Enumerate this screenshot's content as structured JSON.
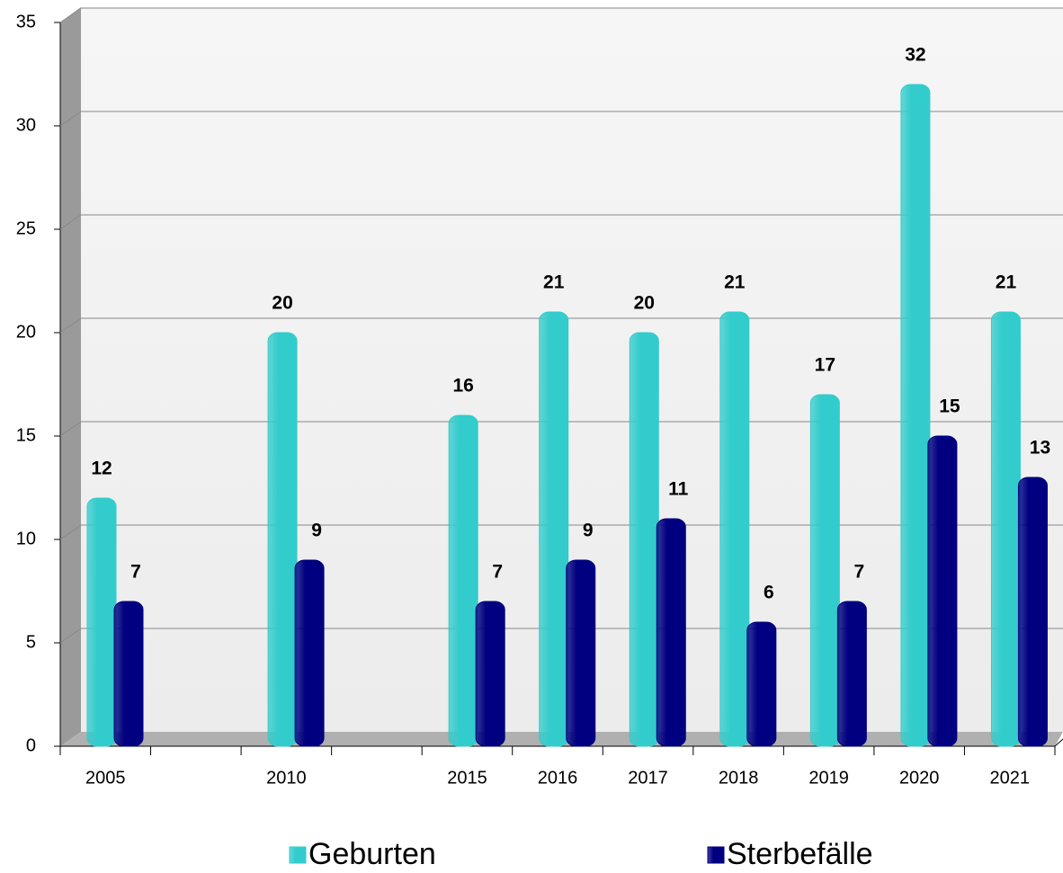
{
  "chart_data": {
    "type": "bar",
    "categories": [
      "2005",
      null,
      "2010",
      null,
      "2015",
      "2016",
      "2017",
      "2018",
      "2019",
      "2020",
      "2021"
    ],
    "series": [
      {
        "name": "Geburten",
        "color": "#33cccc",
        "values": [
          12,
          null,
          20,
          null,
          16,
          21,
          20,
          21,
          17,
          32,
          21
        ]
      },
      {
        "name": "Sterbefälle",
        "color": "#000080",
        "values": [
          7,
          null,
          9,
          null,
          7,
          9,
          11,
          6,
          7,
          15,
          13
        ]
      }
    ],
    "ylim": [
      0,
      35
    ],
    "yticks": [
      0,
      5,
      10,
      15,
      20,
      25,
      30,
      35
    ],
    "grid": true,
    "legend": "bottom"
  }
}
